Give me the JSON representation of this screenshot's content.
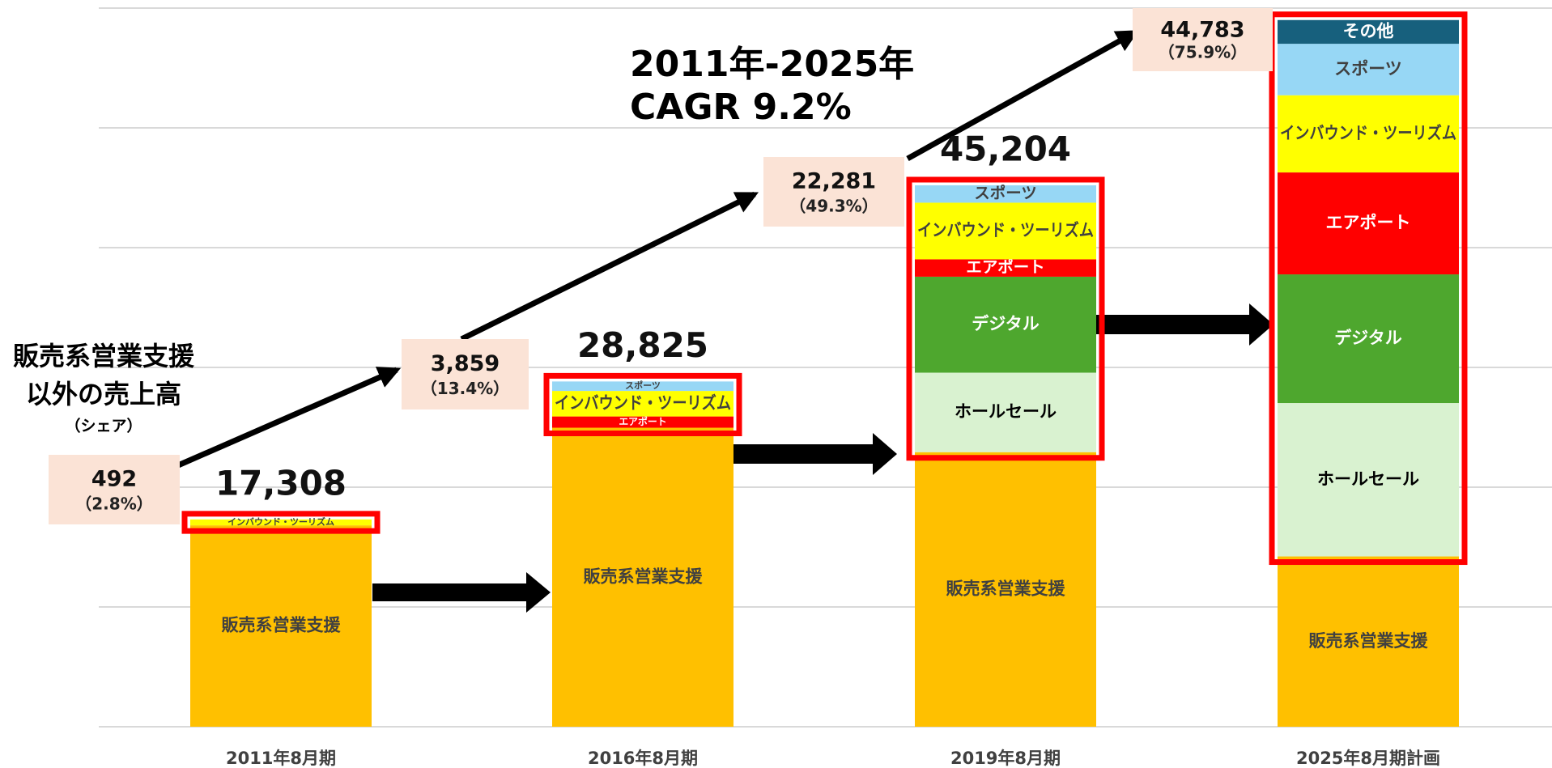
{
  "chart_data": {
    "type": "stacked_bar",
    "categories": [
      "2011年8月期",
      "2016年8月期",
      "2019年8月期",
      "2025年8月期計画"
    ],
    "series": [
      {
        "name": "販売系営業支援",
        "color": "#ffc000",
        "text_color": "#404040",
        "values": [
          16816,
          24966,
          22923,
          14220
        ]
      },
      {
        "name": "ホールセール",
        "color": "#d9f2d0",
        "text_color": "#000000",
        "values": [
          null,
          null,
          6638,
          12805
        ]
      },
      {
        "name": "デジタル",
        "color": "#4ea72e",
        "text_color": "#ffffff",
        "values": [
          null,
          null,
          8012,
          10742
        ]
      },
      {
        "name": "エアポート",
        "color": "#ff0000",
        "text_color": "#ffffff",
        "values": [
          null,
          939,
          1450,
          8511
        ]
      },
      {
        "name": "インバウンド・ツーリズム",
        "color": "#ffff00",
        "text_color": "#404040",
        "values": [
          492,
          2130,
          4731,
          6445
        ]
      },
      {
        "name": "スポーツ",
        "color": "#97d7f5",
        "text_color": "#404040",
        "values": [
          null,
          790,
          1450,
          4297
        ]
      },
      {
        "name": "その他",
        "color": "#17607d",
        "text_color": "#ffffff",
        "values": [
          null,
          null,
          null,
          1983
        ]
      }
    ],
    "totals": [
      17308,
      28825,
      45204,
      null
    ],
    "total_labels": [
      "17,308",
      "28,825",
      "45,204",
      null
    ],
    "other_sales": {
      "values": [
        492,
        3859,
        22281,
        44783
      ],
      "value_labels": [
        "492",
        "3,859",
        "22,281",
        "44,783"
      ],
      "shares": [
        2.8,
        13.4,
        49.3,
        75.9
      ],
      "share_labels": [
        "（2.8%）",
        "（13.4%）",
        "（49.3%）",
        "（75.9%）"
      ]
    },
    "left_title": [
      "販売系営業支援",
      "以外の売上高"
    ],
    "left_subtitle": "（シェア）",
    "cagr_annotation": [
      "2011年-2025年",
      "CAGR  9.2%"
    ],
    "ylim": [
      0,
      60000
    ],
    "yticks": [
      0,
      10000,
      20000,
      30000,
      40000,
      50000,
      60000
    ],
    "grid": true
  }
}
